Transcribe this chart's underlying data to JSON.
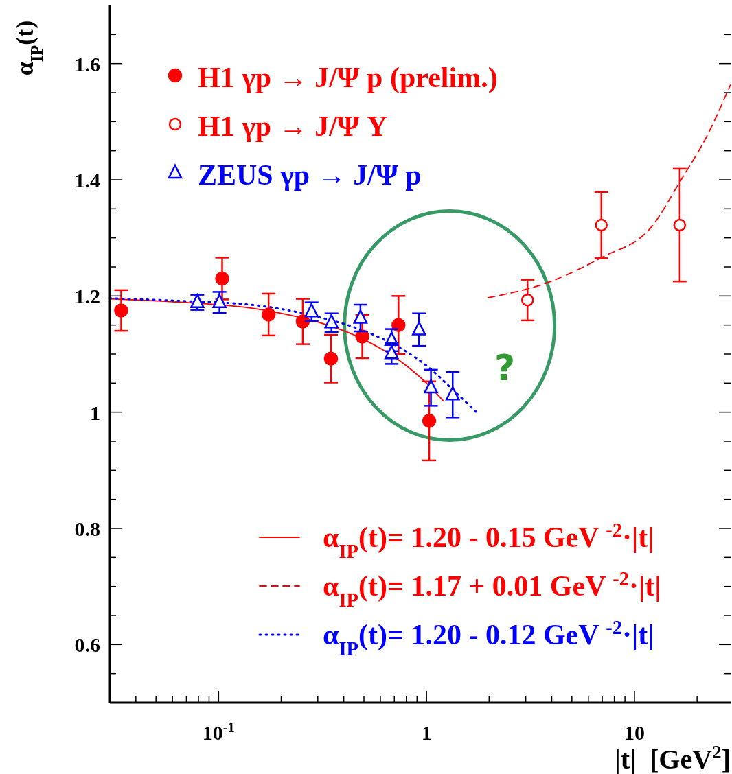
{
  "chart_data": {
    "type": "scatter",
    "xlabel": "|t|  [GeV$^{2}$]",
    "ylabel": "α$_{IP}$(t)",
    "log": "x",
    "legend": "bottom left",
    "xlim": [
      0.03,
      29
    ],
    "ylim": [
      0.5,
      1.7
    ],
    "xticks": [
      {
        "value": 0.04,
        "label": null
      },
      {
        "value": 0.05,
        "label": null
      },
      {
        "value": 0.06,
        "label": null
      },
      {
        "value": 0.07,
        "label": null
      },
      {
        "value": 0.08,
        "label": null
      },
      {
        "value": 0.09,
        "label": null
      },
      {
        "value": 0.1,
        "label": "10$^{-1}$"
      },
      {
        "value": 0.2,
        "label": null
      },
      {
        "value": 0.3,
        "label": null
      },
      {
        "value": 0.4,
        "label": null
      },
      {
        "value": 0.5,
        "label": null
      },
      {
        "value": 0.6,
        "label": null
      },
      {
        "value": 0.7,
        "label": null
      },
      {
        "value": 0.8,
        "label": null
      },
      {
        "value": 0.9,
        "label": null
      },
      1,
      {
        "value": 2,
        "label": null
      },
      {
        "value": 3,
        "label": null
      },
      {
        "value": 4,
        "label": null
      },
      {
        "value": 5,
        "label": null
      },
      {
        "value": 6,
        "label": null
      },
      {
        "value": 7,
        "label": null
      },
      {
        "value": 8,
        "label": null
      },
      {
        "value": 9,
        "label": null
      },
      10,
      {
        "value": 20,
        "label": null
      }
    ],
    "yticks": [
      {
        "value": 0.55,
        "label": null
      },
      0.6,
      {
        "value": 0.65,
        "label": null
      },
      {
        "value": 0.7,
        "label": null
      },
      {
        "value": 0.75,
        "label": null
      },
      0.8,
      {
        "value": 0.85,
        "label": null
      },
      {
        "value": 0.9,
        "label": null
      },
      {
        "value": 0.95,
        "label": null
      },
      1,
      {
        "value": 1.05,
        "label": null
      },
      {
        "value": 1.1,
        "label": null
      },
      {
        "value": 1.15,
        "label": null
      },
      1.2,
      {
        "value": 1.25,
        "label": null
      },
      {
        "value": 1.3,
        "label": null
      },
      {
        "value": 1.35,
        "label": null
      },
      1.4,
      {
        "value": 1.45,
        "label": null
      },
      {
        "value": 1.5,
        "label": null
      },
      {
        "value": 1.55,
        "label": null
      },
      1.6,
      {
        "value": 1.65,
        "label": null
      }
    ],
    "series": [
      {
        "name": "α$_{IP}$(t)= 1.20 - 0.15 GeV $^{-2}$·|t|",
        "type": "line",
        "color": "#ff0000",
        "line_style": "solid",
        "x": [
          0.03,
          0.06,
          0.15,
          0.2,
          0.3,
          0.5,
          0.8,
          1.0,
          1.2
        ],
        "values": [
          1.195,
          1.19,
          1.178,
          1.17,
          1.155,
          1.125,
          1.08,
          1.05,
          1.02
        ]
      },
      {
        "name": "α$_{IP}$(t)= 1.17 + 0.01 GeV $^{-2}$·|t|",
        "type": "line",
        "color": "#ff0000",
        "line_style": "dashed",
        "x": [
          1.98,
          3.82,
          6.93,
          12.2,
          16.5,
          22.5,
          28.9
        ],
        "values": [
          1.197,
          1.223,
          1.266,
          1.321,
          1.396,
          1.478,
          1.563
        ]
      },
      {
        "name": "α$_{IP}$(t)= 1.20 - 0.12 GeV $^{-2}$·|t|",
        "type": "line",
        "color": "#0000ff",
        "line_style": "dotted",
        "x": [
          0.03,
          0.06,
          0.15,
          0.3,
          0.5,
          0.8,
          1.0,
          1.4,
          1.75
        ],
        "values": [
          1.196,
          1.192,
          1.184,
          1.164,
          1.14,
          1.104,
          1.08,
          1.032,
          0.999
        ]
      },
      {
        "name": "H1 γp → J/Ψ p (prelim.)",
        "color": "#ff0000",
        "marker": "circle",
        "x": [
          0.034,
          0.104,
          0.174,
          0.254,
          0.347,
          0.491,
          0.733,
          1.03
        ],
        "values": [
          1.175,
          1.23,
          1.168,
          1.156,
          1.092,
          1.13,
          1.15,
          0.985
        ],
        "errors": [
          0.035,
          0.036,
          0.036,
          0.039,
          0.041,
          0.037,
          0.05,
          0.068
        ]
      },
      {
        "name": "H1 γp → J/Ψ Y",
        "color": "#ff0000",
        "marker": "circle",
        "x": [
          3.06,
          6.93,
          16.5
        ],
        "values": [
          1.193,
          1.322,
          1.322
        ],
        "errors": [
          0.035,
          0.057,
          0.097
        ]
      },
      {
        "name": "ZEUS γp → J/Ψ p",
        "color": "#0000ff",
        "marker": "triangle",
        "x": [
          0.079,
          0.101,
          0.28,
          0.349,
          0.481,
          0.679,
          0.679,
          0.92,
          1.05,
          1.336
        ],
        "values": [
          1.189,
          1.189,
          1.173,
          1.154,
          1.162,
          1.124,
          1.101,
          1.142,
          1.042,
          1.03
        ],
        "errors": [
          0.013,
          0.018,
          0.016,
          0.016,
          0.023,
          0.019,
          0.018,
          0.028,
          0.031,
          0.039
        ]
      }
    ],
    "annotations": [
      "?"
    ]
  }
}
